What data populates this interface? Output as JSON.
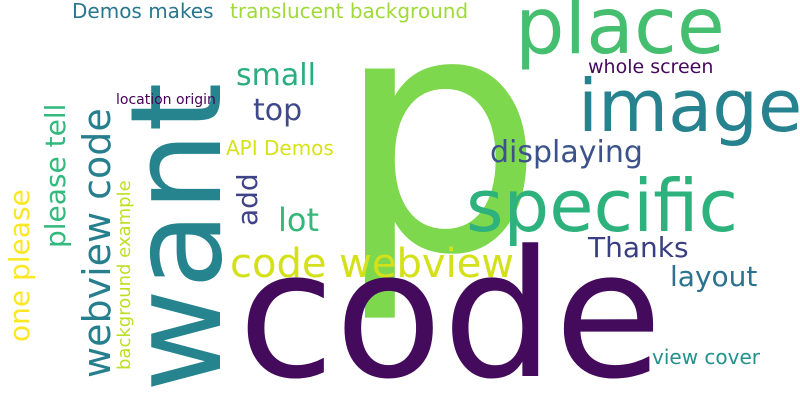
{
  "word_cloud": {
    "words": [
      {
        "key": "p",
        "text": "p",
        "color": "#7ed84e"
      },
      {
        "key": "code_big",
        "text": "code",
        "color": "#440a5c"
      },
      {
        "key": "want",
        "text": "want",
        "color": "#25848e"
      },
      {
        "key": "place",
        "text": "place",
        "color": "#45bf6f"
      },
      {
        "key": "image",
        "text": "image",
        "color": "#26828e"
      },
      {
        "key": "specific",
        "text": "specific",
        "color": "#2db27d"
      },
      {
        "key": "webview_code",
        "text": "webview code",
        "color": "#277f8e"
      },
      {
        "key": "code_webview",
        "text": "code webview",
        "color": "#d4e11a"
      },
      {
        "key": "displaying",
        "text": "displaying",
        "color": "#3b528b"
      },
      {
        "key": "thanks",
        "text": "Thanks",
        "color": "#3a3f83"
      },
      {
        "key": "layout",
        "text": "layout",
        "color": "#2c718e"
      },
      {
        "key": "lot",
        "text": "lot",
        "color": "#35b779"
      },
      {
        "key": "small",
        "text": "small",
        "color": "#29af7f"
      },
      {
        "key": "top",
        "text": "top",
        "color": "#3e4989"
      },
      {
        "key": "add",
        "text": "add",
        "color": "#404387"
      },
      {
        "key": "api_demos",
        "text": "API Demos",
        "color": "#d8e219"
      },
      {
        "key": "demos_makes",
        "text": "Demos makes",
        "color": "#2a768e"
      },
      {
        "key": "translucent_background",
        "text": "translucent background",
        "color": "#a0da39"
      },
      {
        "key": "whole_screen",
        "text": "whole screen",
        "color": "#46085c"
      },
      {
        "key": "location_origin",
        "text": "location origin",
        "color": "#440154"
      },
      {
        "key": "please_tell",
        "text": "please tell",
        "color": "#33b87d"
      },
      {
        "key": "one_please",
        "text": "one please",
        "color": "#fde725"
      },
      {
        "key": "background_example",
        "text": "background example",
        "color": "#bddf26"
      },
      {
        "key": "view_cover",
        "text": "view cover",
        "color": "#21918c"
      }
    ]
  }
}
